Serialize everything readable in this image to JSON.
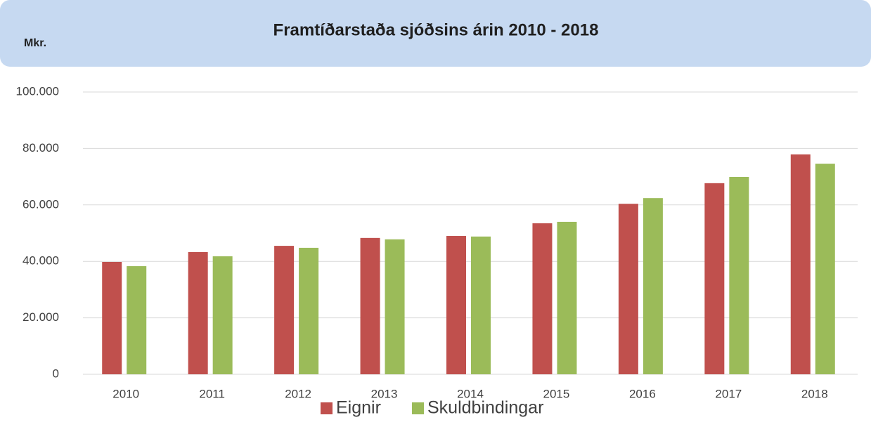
{
  "chart_data": {
    "type": "bar",
    "title": "Framtíðarstaða sjóðsins árin 2010 - 2018",
    "y_label": "Mkr.",
    "categories": [
      "2010",
      "2011",
      "2012",
      "2013",
      "2014",
      "2015",
      "2016",
      "2017",
      "2018"
    ],
    "series": [
      {
        "name": "Eignir",
        "color": "#c0504d",
        "values": [
          39800,
          43300,
          45500,
          48300,
          49000,
          53500,
          60400,
          67700,
          77900
        ]
      },
      {
        "name": "Skuldbindingar",
        "color": "#9bbb59",
        "values": [
          38300,
          41800,
          44800,
          47800,
          48800,
          54000,
          62400,
          69900,
          74600
        ]
      }
    ],
    "ylim": [
      0,
      100000
    ],
    "yticks": [
      0,
      {
        "value": 20000,
        "label": "20.000"
      },
      {
        "value": 40000,
        "label": "40.000"
      },
      {
        "value": 60000,
        "label": "60.000"
      },
      {
        "value": 80000,
        "label": "80.000"
      },
      {
        "value": 100000,
        "label": "100.000"
      }
    ],
    "grid": true,
    "legend": "bottom"
  }
}
